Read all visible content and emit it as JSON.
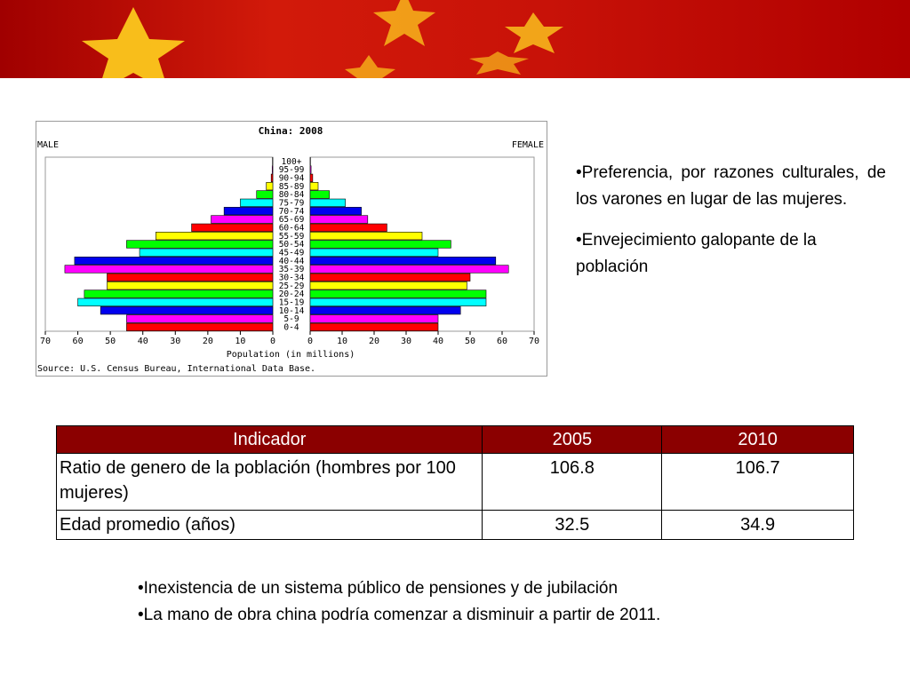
{
  "banner": {
    "colors": {
      "red": "#c81208",
      "star": "#ffd21e"
    }
  },
  "chart_data": {
    "type": "bar",
    "title": "China: 2008",
    "left_label": "MALE",
    "right_label": "FEMALE",
    "xlabel": "Population (in millions)",
    "source": "Source: U.S. Census Bureau, International Data Base.",
    "xlim": [
      0,
      70
    ],
    "ticks": [
      "70",
      "60",
      "50",
      "40",
      "30",
      "20",
      "10",
      "0"
    ],
    "ticks_right": [
      "0",
      "10",
      "20",
      "30",
      "40",
      "50",
      "60",
      "70"
    ],
    "categories": [
      "0-4",
      "5-9",
      "10-14",
      "15-19",
      "20-24",
      "25-29",
      "30-34",
      "35-39",
      "40-44",
      "45-49",
      "50-54",
      "55-59",
      "60-64",
      "65-69",
      "70-74",
      "75-79",
      "80-84",
      "85-89",
      "90-94",
      "95-99",
      "100+"
    ],
    "series": [
      {
        "name": "MALE",
        "values": [
          45,
          45,
          53,
          60,
          58,
          51,
          51,
          64,
          61,
          41,
          45,
          36,
          25,
          19,
          15,
          10,
          5,
          2,
          0.5,
          0.2,
          0.1
        ]
      },
      {
        "name": "FEMALE",
        "values": [
          40,
          40,
          47,
          55,
          55,
          49,
          50,
          62,
          58,
          40,
          44,
          35,
          24,
          18,
          16,
          11,
          6,
          2.5,
          0.8,
          0.3,
          0.1
        ]
      }
    ],
    "bar_colors": [
      "#ff0000",
      "#ff00ff",
      "#0000ee",
      "#00ffff",
      "#00ff00",
      "#ffff00",
      "#ff0000",
      "#ff00ff",
      "#0000ee",
      "#00ffff",
      "#00ff00",
      "#ffff00",
      "#ff0000",
      "#ff00ff",
      "#0000ee",
      "#00ffff",
      "#00ff00",
      "#ffff00",
      "#ff0000",
      "#ff00ff",
      "#0000ee"
    ]
  },
  "bullets_right": [
    "•Preferencia, por razones culturales, de los varones en lugar de las mujeres.",
    "•Envejecimiento galopante de la población"
  ],
  "table": {
    "header": {
      "indicador": "Indicador",
      "y2005": "2005",
      "y2010": "2010"
    },
    "rows": [
      {
        "label": "Ratio de genero de la población (hombres por 100 mujeres)",
        "y2005": "106.8",
        "y2010": "106.7"
      },
      {
        "label": "Edad promedio (años)",
        "y2005": "32.5",
        "y2010": "34.9"
      }
    ],
    "header_color": "#8b0000"
  },
  "bullets_bottom": [
    "•Inexistencia de un sistema público de pensiones y de jubilación",
    "•La mano de obra china podría comenzar a disminuir a partir de 2011."
  ]
}
